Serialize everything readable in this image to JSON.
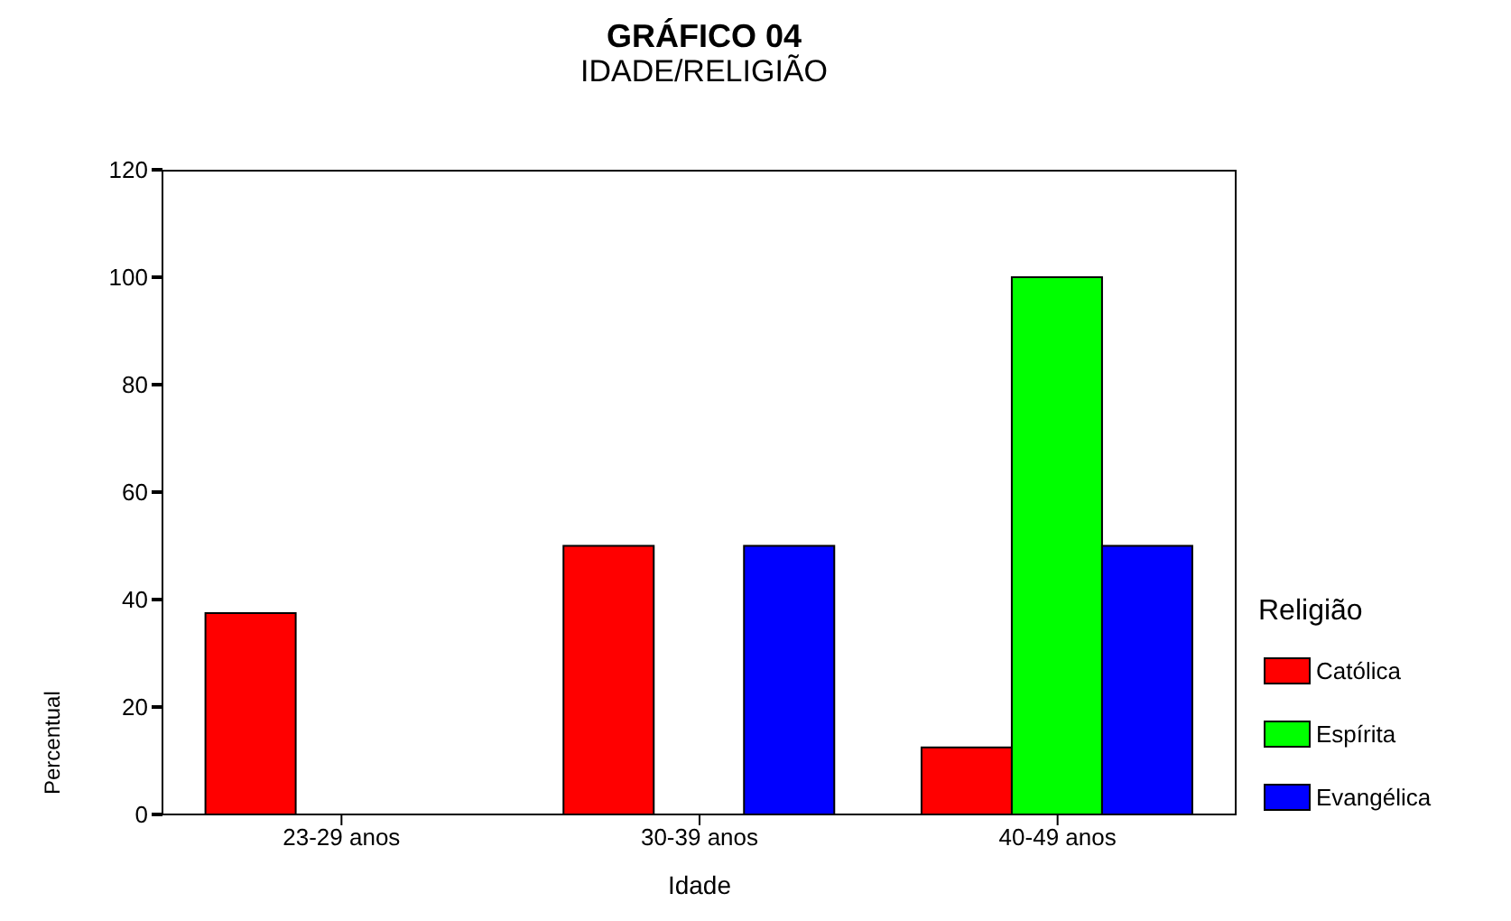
{
  "chart_data": {
    "type": "bar",
    "title": "GRÁFICO 04",
    "subtitle": "IDADE/RELIGIÃO",
    "xlabel": "Idade",
    "ylabel": "Percentual",
    "legend_title": "Religião",
    "categories": [
      "23-29 anos",
      "30-39 anos",
      "40-49 anos"
    ],
    "series": [
      {
        "name": "Católica",
        "color": "#ff0000",
        "values": [
          37.5,
          50,
          12.5
        ]
      },
      {
        "name": "Espírita",
        "color": "#00ff00",
        "values": [
          0,
          0,
          100
        ]
      },
      {
        "name": "Evangélica",
        "color": "#0000ff",
        "values": [
          0,
          50,
          50
        ]
      }
    ],
    "ylim": [
      0,
      120
    ],
    "yticks": [
      0,
      20,
      40,
      60,
      80,
      100,
      120
    ],
    "grid": false,
    "legend": "right"
  }
}
